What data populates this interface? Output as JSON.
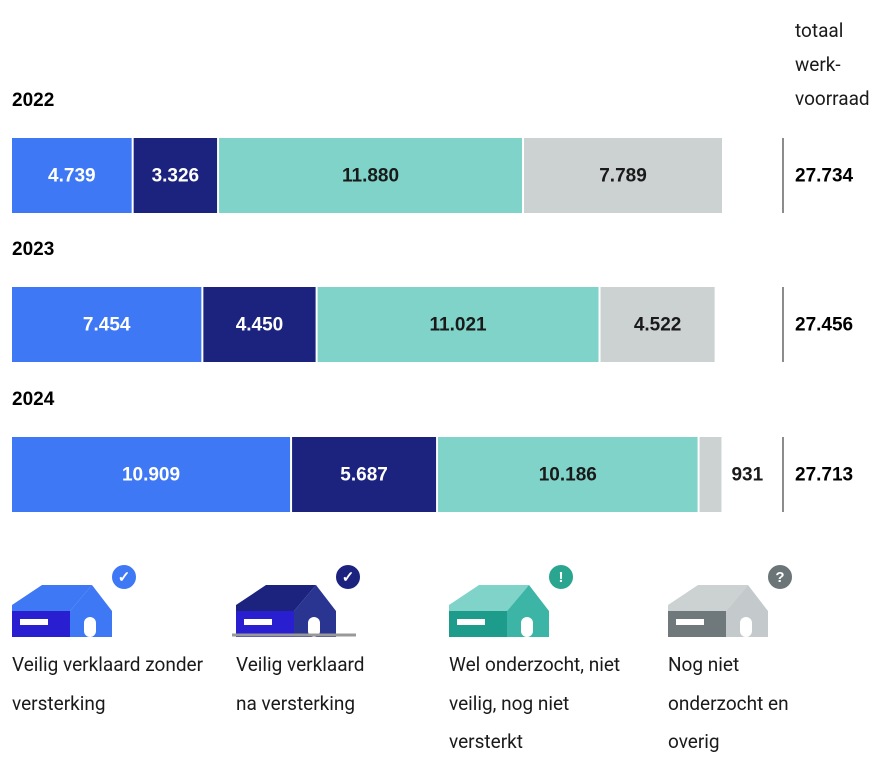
{
  "chart_data": {
    "type": "stacked-bar-horizontal",
    "categories": [
      "2022",
      "2023",
      "2024"
    ],
    "total_header": "totaal werk-voorraad",
    "series": [
      {
        "name": "Veilig verklaard zonder versterking",
        "color": "#3f78f5",
        "values": [
          4739,
          7454,
          10909
        ],
        "value_labels": [
          "4.739",
          "7.454",
          "10.909"
        ]
      },
      {
        "name": "Veilig verklaard na versterking",
        "color": "#1b237f",
        "values": [
          3326,
          4450,
          5687
        ],
        "value_labels": [
          "3.326",
          "4.450",
          "5.687"
        ]
      },
      {
        "name": "Wel onderzocht, niet veilig, nog niet versterkt",
        "color": "#7fd3c9",
        "values": [
          11880,
          11021,
          10186
        ],
        "value_labels": [
          "11.880",
          "11.021",
          "10.186"
        ]
      },
      {
        "name": "Nog niet onderzocht en overig",
        "color": "#ccd1d2",
        "values": [
          7789,
          4522,
          931
        ],
        "value_labels": [
          "7.789",
          "4.522",
          "931"
        ]
      }
    ],
    "totals": [
      {
        "value": 27734,
        "label": "27.734"
      },
      {
        "value": 27456,
        "label": "27.456"
      },
      {
        "value": 27713,
        "label": "27.713"
      }
    ]
  }
}
